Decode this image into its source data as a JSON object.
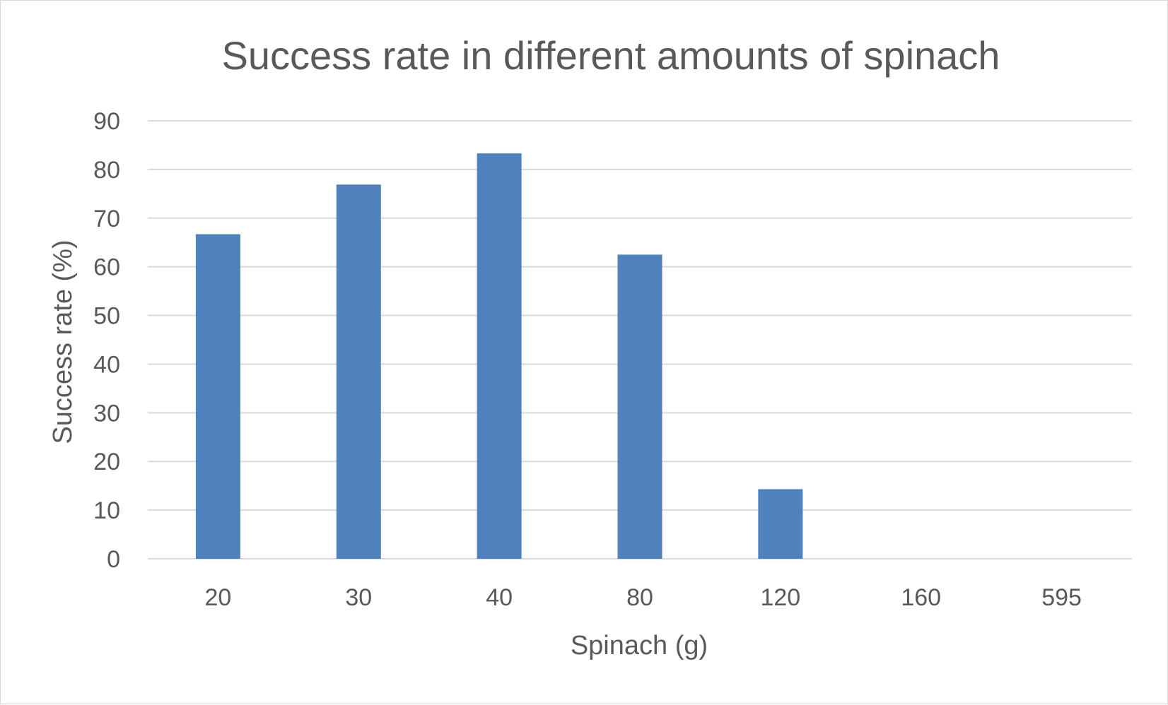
{
  "chart_data": {
    "type": "bar",
    "title": "Success rate in different amounts of spinach",
    "xlabel": "Spinach (g)",
    "ylabel": "Success rate (%)",
    "categories": [
      "20",
      "30",
      "40",
      "80",
      "120",
      "160",
      "595"
    ],
    "values": [
      66.7,
      76.9,
      83.3,
      62.5,
      14.3,
      0,
      0
    ],
    "ylim": [
      0,
      90
    ],
    "yticks": [
      "0",
      "10",
      "20",
      "30",
      "40",
      "50",
      "60",
      "70",
      "80",
      "90"
    ],
    "grid": true,
    "legend": "none",
    "bar_color": "#4f81bd"
  }
}
